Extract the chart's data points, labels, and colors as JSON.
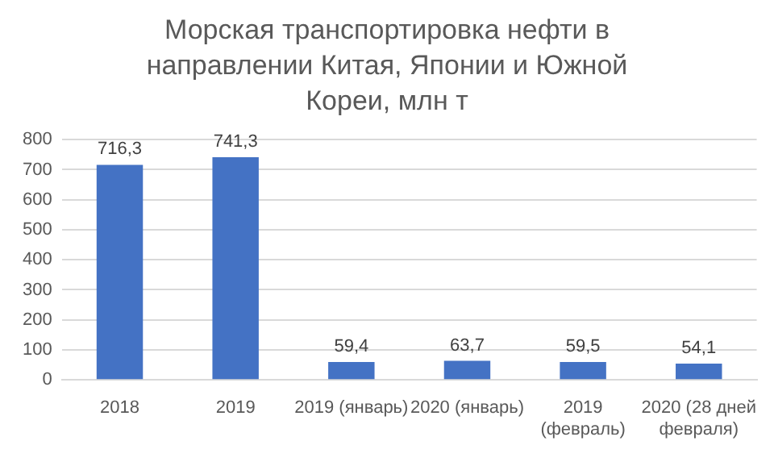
{
  "chart_data": {
    "type": "bar",
    "title": "Морская транспортировка нефти в направлении Китая, Японии и Южной Кореи, млн т",
    "categories": [
      "2018",
      "2019",
      "2019 (январь)",
      "2020 (январь)",
      "2019 (февраль)",
      "2020 (28 дней февраля)"
    ],
    "values": [
      716.3,
      741.3,
      59.4,
      63.7,
      59.5,
      54.1
    ],
    "value_labels": [
      "716,3",
      "741,3",
      "59,4",
      "63,7",
      "59,5",
      "54,1"
    ],
    "color": "#4472c4",
    "ylim": [
      0,
      800
    ],
    "yticks": [
      0,
      100,
      200,
      300,
      400,
      500,
      600,
      700,
      800
    ],
    "grid": "y",
    "legend": false
  }
}
